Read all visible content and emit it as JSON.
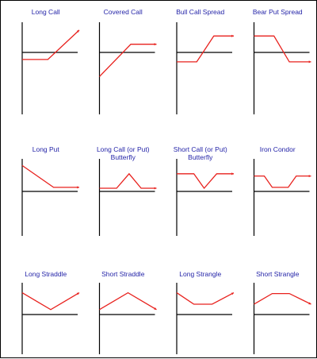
{
  "colors": {
    "axis": "#000000",
    "payoff": "#e8211d",
    "title": "#2424a8"
  },
  "diagrams": [
    {
      "title": [
        "Long Call"
      ],
      "payoff": [
        [
          0,
          0.42
        ],
        [
          0.45,
          0.42
        ],
        [
          1,
          0.92
        ]
      ]
    },
    {
      "title": [
        "Covered Call"
      ],
      "payoff": [
        [
          0,
          0.13
        ],
        [
          0.55,
          0.68
        ],
        [
          1,
          0.68
        ]
      ]
    },
    {
      "title": [
        "Bull Call Spread"
      ],
      "payoff": [
        [
          0,
          0.38
        ],
        [
          0.35,
          0.38
        ],
        [
          0.65,
          0.82
        ],
        [
          1,
          0.82
        ]
      ]
    },
    {
      "title": [
        "Bear Put Spread"
      ],
      "payoff": [
        [
          0,
          0.82
        ],
        [
          0.35,
          0.82
        ],
        [
          0.62,
          0.38
        ],
        [
          1,
          0.38
        ]
      ]
    },
    {
      "title": [
        "Long Put"
      ],
      "payoff": [
        [
          0,
          0.92
        ],
        [
          0.55,
          0.42
        ],
        [
          1,
          0.42
        ]
      ]
    },
    {
      "title": [
        "Long Call (or Put)",
        "Butterfly"
      ],
      "payoff": [
        [
          0,
          0.4
        ],
        [
          0.3,
          0.4
        ],
        [
          0.52,
          0.73
        ],
        [
          0.73,
          0.4
        ],
        [
          1,
          0.4
        ]
      ]
    },
    {
      "title": [
        "Short Call (or Put)",
        "Butterfly"
      ],
      "payoff": [
        [
          0,
          0.73
        ],
        [
          0.3,
          0.73
        ],
        [
          0.48,
          0.4
        ],
        [
          0.7,
          0.73
        ],
        [
          1,
          0.73
        ]
      ]
    },
    {
      "title": [
        "Iron Condor"
      ],
      "payoff": [
        [
          0,
          0.68
        ],
        [
          0.18,
          0.68
        ],
        [
          0.32,
          0.42
        ],
        [
          0.6,
          0.42
        ],
        [
          0.74,
          0.68
        ],
        [
          1,
          0.68
        ]
      ]
    },
    {
      "title": [
        "Long Straddle"
      ],
      "payoff": [
        [
          0,
          0.82
        ],
        [
          0.5,
          0.38
        ],
        [
          1,
          0.82
        ]
      ]
    },
    {
      "title": [
        "Short Straddle"
      ],
      "payoff": [
        [
          0,
          0.38
        ],
        [
          0.5,
          0.82
        ],
        [
          1,
          0.38
        ]
      ]
    },
    {
      "title": [
        "Long Strangle"
      ],
      "payoff": [
        [
          0,
          0.82
        ],
        [
          0.3,
          0.52
        ],
        [
          0.62,
          0.52
        ],
        [
          1,
          0.82
        ]
      ]
    },
    {
      "title": [
        "Short Strangle"
      ],
      "payoff": [
        [
          0,
          0.52
        ],
        [
          0.32,
          0.8
        ],
        [
          0.62,
          0.8
        ],
        [
          1,
          0.52
        ]
      ]
    }
  ]
}
